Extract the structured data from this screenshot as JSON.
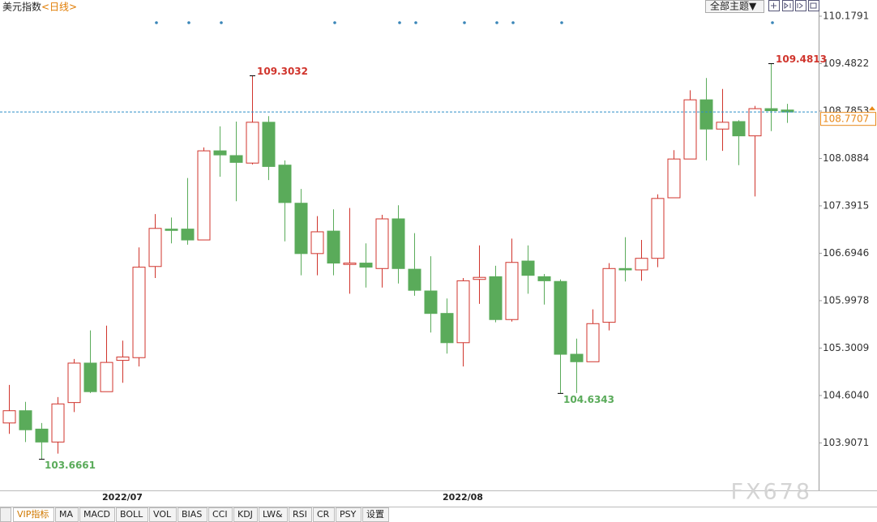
{
  "header": {
    "title": "美元指数",
    "period": "<日线>",
    "theme_button": "全部主题▼"
  },
  "chart_data": {
    "type": "candlestick",
    "categories": [
      null,
      null,
      null,
      null,
      null,
      null,
      null,
      "2022/07",
      null,
      null,
      null,
      null,
      null,
      null,
      null,
      null,
      null,
      null,
      null,
      null,
      null,
      null,
      null,
      null,
      null,
      null,
      null,
      null,
      "2022/08",
      null,
      null,
      null,
      null,
      null,
      null,
      null,
      null,
      null,
      null,
      null,
      null,
      null,
      null,
      null,
      null,
      null,
      null,
      null,
      null
    ],
    "open": [
      104.2,
      104.38,
      104.11,
      103.92,
      104.5,
      105.08,
      104.66,
      105.12,
      105.16,
      106.5,
      107.05,
      107.05,
      106.89,
      108.2,
      108.13,
      108.02,
      108.62,
      107.99,
      107.43,
      106.69,
      107.02,
      106.53,
      106.55,
      106.47,
      107.2,
      106.46,
      106.14,
      105.81,
      105.38,
      106.31,
      106.35,
      105.72,
      106.58,
      106.35,
      106.28,
      105.21,
      105.1,
      105.68,
      106.47,
      106.45,
      106.62,
      107.51,
      108.08,
      108.95,
      108.52,
      108.63,
      108.42,
      108.82,
      108.8
    ],
    "high": [
      104.76,
      104.51,
      104.2,
      104.58,
      105.14,
      105.56,
      105.63,
      105.41,
      106.78,
      107.27,
      107.22,
      107.8,
      108.25,
      108.56,
      108.63,
      109.3032,
      108.71,
      108.06,
      107.64,
      107.24,
      107.34,
      107.36,
      106.84,
      107.26,
      107.4,
      106.99,
      106.65,
      106.03,
      106.33,
      106.81,
      106.51,
      106.91,
      106.81,
      106.39,
      106.31,
      105.44,
      105.87,
      106.55,
      106.93,
      106.89,
      107.56,
      108.21,
      109.09,
      109.27,
      109.11,
      108.65,
      108.86,
      109.4813,
      108.89
    ],
    "low": [
      104.04,
      103.92,
      103.6661,
      103.75,
      104.36,
      104.64,
      104.66,
      104.79,
      105.03,
      106.33,
      106.84,
      106.82,
      106.89,
      107.82,
      107.46,
      108.0,
      107.77,
      106.87,
      106.37,
      106.37,
      106.37,
      106.1,
      106.19,
      106.19,
      106.25,
      106.07,
      105.53,
      105.22,
      105.03,
      105.95,
      105.68,
      105.69,
      106.1,
      105.94,
      104.6343,
      104.64,
      105.1,
      105.56,
      106.28,
      106.29,
      106.49,
      107.51,
      108.08,
      108.06,
      108.2,
      107.99,
      107.53,
      108.49,
      108.61
    ],
    "close": [
      104.38,
      104.1,
      103.92,
      104.48,
      105.08,
      104.66,
      105.09,
      105.17,
      106.49,
      107.06,
      107.03,
      106.89,
      108.2,
      108.14,
      108.03,
      108.62,
      107.97,
      107.44,
      106.69,
      107.01,
      106.55,
      106.55,
      106.49,
      107.2,
      106.47,
      106.15,
      105.81,
      105.38,
      106.29,
      106.34,
      105.72,
      106.56,
      106.37,
      106.29,
      105.21,
      105.1,
      105.66,
      106.47,
      106.45,
      106.62,
      107.5,
      108.08,
      108.95,
      108.52,
      108.62,
      108.42,
      108.82,
      108.79,
      108.7707
    ],
    "up_color": "#d0342c",
    "down_color": "#5aab5a",
    "last_price_color": "#e8891a",
    "ylim": [
      103.209,
      110.417
    ],
    "yticks": [
      110.1791,
      109.4822,
      108.7853,
      108.0884,
      107.3915,
      106.6946,
      105.9978,
      105.3009,
      {
        "value": 104.604,
        "label": "104.6040"
      },
      103.9071
    ],
    "grid": false
  },
  "toolbar": {
    "tabs": [
      "VIP指标",
      "MA",
      "MACD",
      "BOLL",
      "VOL",
      "BIAS",
      "CCI",
      "KDJ",
      "LW&",
      "RSI",
      "CR",
      "PSY",
      "设置"
    ]
  },
  "watermark": "FX678"
}
